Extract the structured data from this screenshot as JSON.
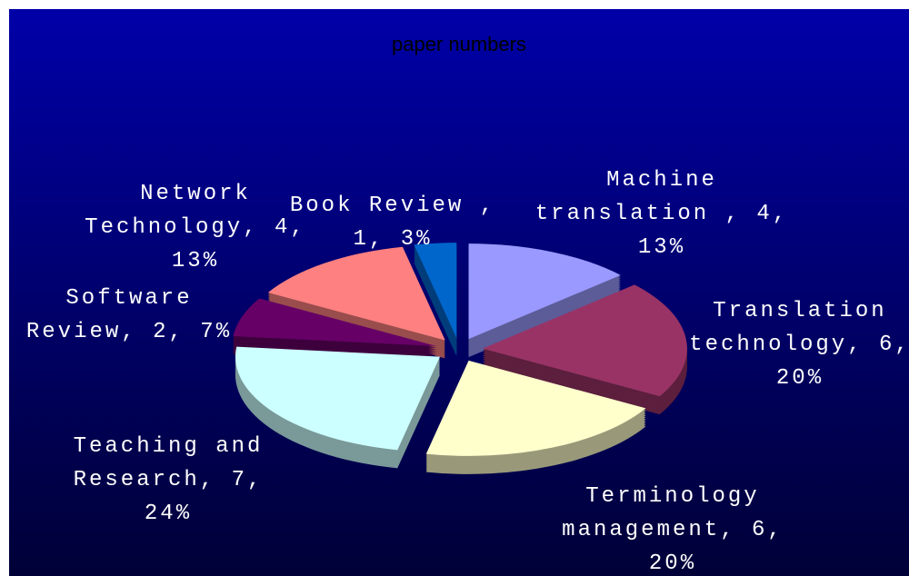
{
  "chart_data": {
    "type": "pie3d",
    "title": "paper numbers",
    "values": [
      4,
      6,
      6,
      7,
      2,
      4,
      1
    ],
    "value_labels": [
      "Machine translation , 4, 13%",
      "Translation technology, 6, 20%",
      "Terminology management, 6, 20%",
      "Teaching and Research, 7, 24%",
      "Software Review, 2, 7%",
      "Network Technology, 4, 13%",
      "Book Review , 1, 3%"
    ],
    "colors": [
      "#9999ff",
      "#993366",
      "#ffffcc",
      "#ccffff",
      "#660066",
      "#ff8080",
      "#0066cc"
    ]
  }
}
